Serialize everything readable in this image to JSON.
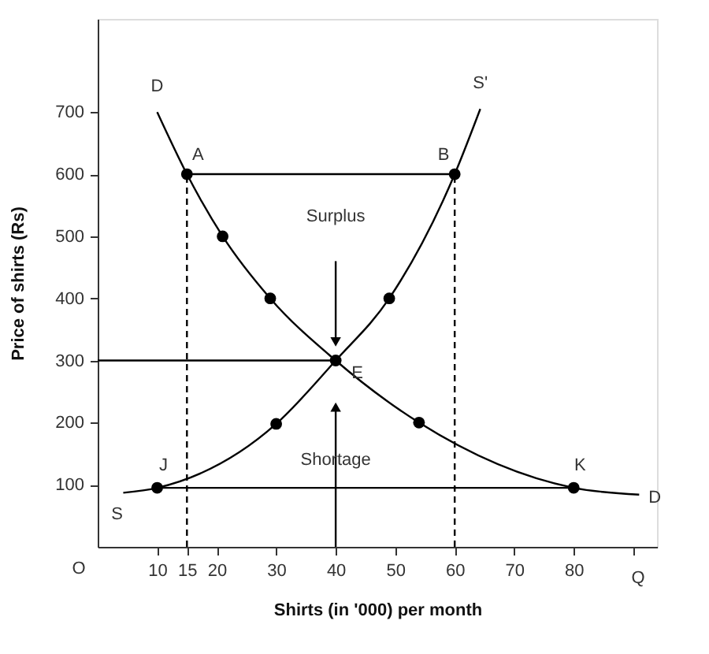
{
  "chart_data": {
    "type": "line",
    "xlabel": "Shirts (in '000) per month",
    "ylabel": "Price of shirts (Rs)",
    "xlim": [
      0,
      94
    ],
    "ylim": [
      0,
      850
    ],
    "xticks": [
      10,
      15,
      20,
      30,
      40,
      50,
      60,
      70,
      80,
      {
        "value": 90,
        "label": null
      }
    ],
    "yticks": [
      100,
      200,
      300,
      400,
      500,
      600,
      700
    ],
    "grid": false,
    "series": [
      {
        "color": "#000000",
        "x": [
          10,
          15,
          21,
          29,
          40,
          54,
          80,
          91
        ],
        "values": [
          700,
          600,
          500,
          400,
          300,
          200,
          95,
          84
        ]
      },
      {
        "color": "#000000",
        "x": [
          4.3,
          10,
          30,
          40,
          49,
          60,
          64.3
        ],
        "values": [
          87,
          95,
          198,
          300,
          400,
          600,
          705
        ]
      },
      {
        "type": "scatter",
        "color": "#000000",
        "marker": "circle",
        "x": [
          15,
          21,
          29,
          40,
          54,
          80,
          10,
          30,
          49,
          60
        ],
        "values": [
          600,
          500,
          400,
          300,
          200,
          95,
          95,
          198,
          400,
          600
        ]
      },
      {
        "color": "#000000",
        "x": [
          15,
          60
        ],
        "values": [
          600,
          600
        ]
      },
      {
        "color": "#000000",
        "x": [
          0,
          40
        ],
        "values": [
          300,
          300
        ]
      },
      {
        "color": "#000000",
        "x": [
          10,
          80
        ],
        "values": [
          95,
          95
        ]
      },
      {
        "color": "#000000",
        "line_style": "dashed",
        "x": [
          15,
          15
        ],
        "values": [
          0,
          600
        ]
      },
      {
        "color": "#000000",
        "line_style": "dashed",
        "x": [
          60,
          60
        ],
        "values": [
          0,
          600
        ]
      },
      {
        "color": "#000000",
        "marker": "triangle",
        "x": [
          40,
          40
        ],
        "values": [
          460,
          330
        ]
      },
      {
        "color": "#000000",
        "marker": "triangle",
        "x": [
          40,
          40
        ],
        "values": [
          0,
          225
        ]
      }
    ],
    "annotations": [
      {
        "text": "D",
        "x": 10,
        "y": 700
      },
      {
        "text": "S'",
        "x": 64.3,
        "y": 705
      },
      {
        "text": "A",
        "x": 15,
        "y": 600
      },
      {
        "text": "B",
        "x": 60,
        "y": 600
      },
      {
        "text": "Surplus",
        "x": 40,
        "y": 460
      },
      {
        "text": "E",
        "x": 40,
        "y": 300
      },
      {
        "text": "Shortage",
        "x": 40,
        "y": 139
      },
      {
        "text": "J",
        "x": 10,
        "y": 95
      },
      {
        "text": "K",
        "x": 80,
        "y": 95
      },
      {
        "text": "S",
        "x": 4.3,
        "y": 87
      },
      {
        "text": "D",
        "x": 91,
        "y": 84
      },
      "O",
      "Q"
    ]
  }
}
